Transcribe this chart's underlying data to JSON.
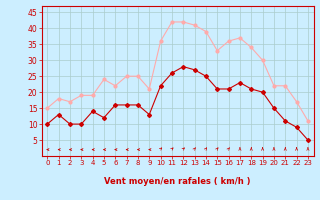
{
  "x": [
    0,
    1,
    2,
    3,
    4,
    5,
    6,
    7,
    8,
    9,
    10,
    11,
    12,
    13,
    14,
    15,
    16,
    17,
    18,
    19,
    20,
    21,
    22,
    23
  ],
  "avg_wind": [
    10,
    13,
    10,
    10,
    14,
    12,
    16,
    16,
    16,
    13,
    22,
    26,
    28,
    27,
    25,
    21,
    21,
    23,
    21,
    20,
    15,
    11,
    9,
    5
  ],
  "gust_wind": [
    15,
    18,
    17,
    19,
    19,
    24,
    22,
    25,
    25,
    21,
    36,
    42,
    42,
    41,
    39,
    33,
    36,
    37,
    34,
    30,
    22,
    22,
    17,
    11
  ],
  "avg_color": "#cc0000",
  "gust_color": "#ffaaaa",
  "bg_color": "#cceeff",
  "grid_color": "#aacccc",
  "xlabel": "Vent moyen/en rafales ( km/h )",
  "xlabel_color": "#cc0000",
  "tick_color": "#cc0000",
  "ylim": [
    0,
    47
  ],
  "yticks": [
    5,
    10,
    15,
    20,
    25,
    30,
    35,
    40,
    45
  ]
}
